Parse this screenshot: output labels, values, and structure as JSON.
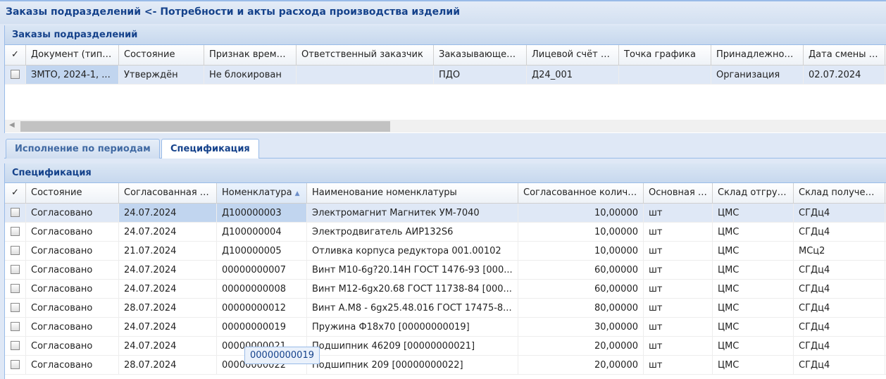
{
  "window_title": "Заказы подразделений <- Потребности и акты расхода производства изделий",
  "orders": {
    "title": "Заказы подразделений",
    "columns": [
      "Документ (тип, №",
      "Состояние",
      "Признак временно",
      "Ответственный заказчик",
      "Заказывающее под",
      "Лицевой счёт зака",
      "Точка графика",
      "Принадлежность",
      "Дата смены сост"
    ],
    "rows": [
      [
        "ЗМТО, 2024-1, ...",
        "Утверждён",
        "Не блокирован",
        "",
        "ПДО",
        "Д24_001",
        "",
        "Организация",
        "02.07.2024"
      ]
    ]
  },
  "tabs": [
    {
      "label": "Исполнение по периодам",
      "active": false
    },
    {
      "label": "Спецификация",
      "active": true
    }
  ],
  "spec": {
    "title": "Спецификация",
    "columns": [
      "Состояние",
      "Согласованная дата",
      "Номенклатура",
      "Наименование номенклатуры",
      "Согласованное количество",
      "Основная ЕИ",
      "Склад отгрузки.",
      "Склад получения"
    ],
    "sort_column": "Номенклатура",
    "sort_dir": "asc",
    "rows": [
      [
        "Согласовано",
        "24.07.2024",
        "Д100000003",
        "Электромагнит Магнитек УМ-7040",
        "10,00000",
        "шт",
        "ЦМС",
        "СГДц4"
      ],
      [
        "Согласовано",
        "24.07.2024",
        "Д100000004",
        "Электродвигатель АИР132S6",
        "10,00000",
        "шт",
        "ЦМС",
        "СГДц4"
      ],
      [
        "Согласовано",
        "21.07.2024",
        "Д100000005",
        "Отливка корпуса редуктора 001.00102",
        "10,00000",
        "шт",
        "ЦМС",
        "МСц2"
      ],
      [
        "Согласовано",
        "24.07.2024",
        "00000000007",
        "Винт М10-6g?20.14Н ГОСТ 1476-93 [000...",
        "60,00000",
        "шт",
        "ЦМС",
        "СГДц4"
      ],
      [
        "Согласовано",
        "24.07.2024",
        "00000000008",
        "Винт М12-6gx20.68 ГОСТ 11738-84 [000...",
        "60,00000",
        "шт",
        "ЦМС",
        "СГДц4"
      ],
      [
        "Согласовано",
        "28.07.2024",
        "00000000012",
        "Винт А.М8 - 6gx25.48.016 ГОСТ 17475-8...",
        "80,00000",
        "шт",
        "ЦМС",
        "СГДц4"
      ],
      [
        "Согласовано",
        "24.07.2024",
        "00000000019",
        "Пружина Ф18х70 [00000000019]",
        "30,00000",
        "шт",
        "ЦМС",
        "СГДц4"
      ],
      [
        "Согласовано",
        "24.07.2024",
        "00000000021",
        "Подшипник 46209 [00000000021]",
        "20,00000",
        "шт",
        "ЦМС",
        "СГДц4"
      ],
      [
        "Согласовано",
        "28.07.2024",
        "00000000022",
        "Подшипник 209 [00000000022]",
        "20,00000",
        "шт",
        "ЦМС",
        "СГДц4"
      ]
    ]
  },
  "tooltip": "00000000019"
}
